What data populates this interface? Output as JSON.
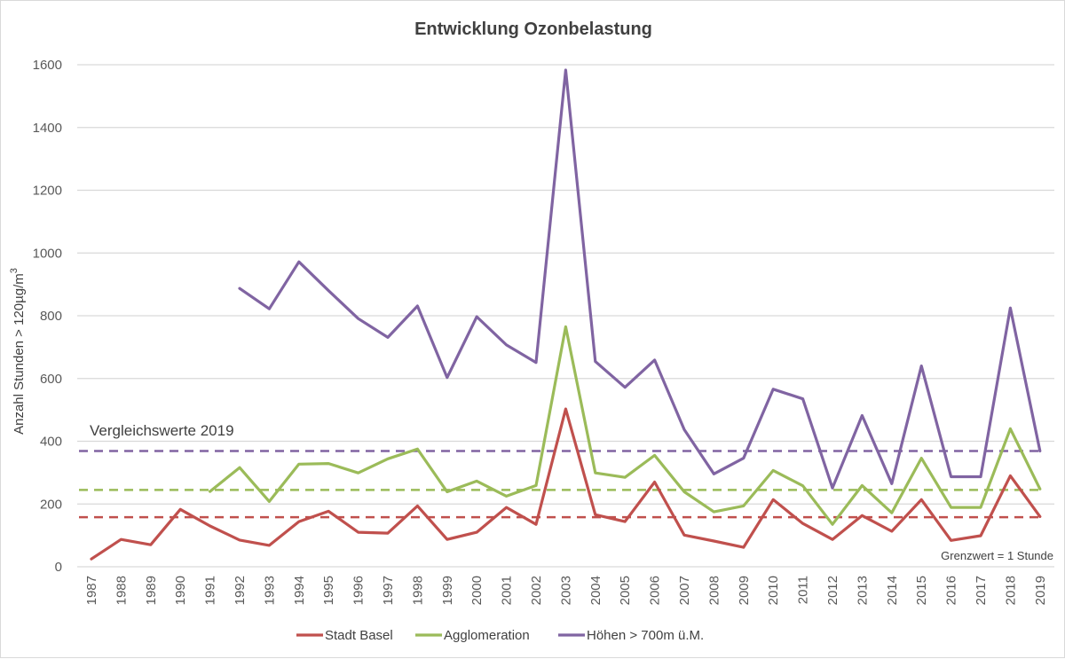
{
  "chart_data": {
    "type": "line",
    "title": "Entwicklung Ozonbelastung",
    "xlabel": "",
    "ylabel": "Anzahl Stunden  > 120µg/m",
    "ylabel_superscript": "3",
    "ylim": [
      0,
      1600
    ],
    "yticks": [
      0,
      200,
      400,
      600,
      800,
      1000,
      1200,
      1400,
      1600
    ],
    "grid": true,
    "legend_position": "bottom",
    "x": [
      "1987",
      "1988",
      "1989",
      "1990",
      "1991",
      "1992",
      "1993",
      "1994",
      "1995",
      "1996",
      "1997",
      "1998",
      "1999",
      "2000",
      "2001",
      "2002",
      "2003",
      "2004",
      "2005",
      "2006",
      "2007",
      "2008",
      "2009",
      "2010",
      "2011",
      "2012",
      "2013",
      "2014",
      "2015",
      "2016",
      "2017",
      "2018",
      "2019"
    ],
    "series": [
      {
        "name": "Stadt Basel",
        "color": "#c0504d",
        "values": [
          25,
          87,
          70,
          183,
          130,
          85,
          68,
          144,
          177,
          110,
          107,
          194,
          87,
          110,
          189,
          135,
          503,
          166,
          144,
          270,
          101,
          82,
          62,
          214,
          138,
          87,
          163,
          113,
          214,
          84,
          99,
          290,
          160
        ]
      },
      {
        "name": "Agglomeration",
        "color": "#9bbb59",
        "values": [
          null,
          null,
          null,
          null,
          240,
          316,
          208,
          327,
          329,
          299,
          344,
          375,
          239,
          273,
          225,
          259,
          765,
          299,
          285,
          355,
          239,
          175,
          194,
          307,
          258,
          135,
          259,
          172,
          346,
          189,
          189,
          440,
          248
        ]
      },
      {
        "name": "Höhen > 700m ü.M.",
        "color": "#8064a2",
        "values": [
          null,
          null,
          null,
          null,
          null,
          887,
          822,
          972,
          880,
          791,
          731,
          831,
          603,
          797,
          707,
          651,
          1583,
          654,
          572,
          659,
          437,
          296,
          346,
          566,
          535,
          251,
          482,
          265,
          640,
          287,
          287,
          825,
          369
        ]
      }
    ],
    "reference_lines": [
      {
        "series": "Höhen > 700m ü.M.",
        "value": 369,
        "color": "#8064a2",
        "style": "dashed"
      },
      {
        "series": "Agglomeration",
        "value": 245,
        "color": "#9bbb59",
        "style": "dashed"
      },
      {
        "series": "Stadt Basel",
        "value": 158,
        "color": "#c0504d",
        "style": "dashed"
      }
    ],
    "annotations": [
      {
        "text": "Vergleichswerte 2019",
        "anchor": "top-left above reference lines"
      },
      {
        "text": "Grenzwert = 1 Stunde",
        "anchor": "bottom-right"
      }
    ]
  }
}
